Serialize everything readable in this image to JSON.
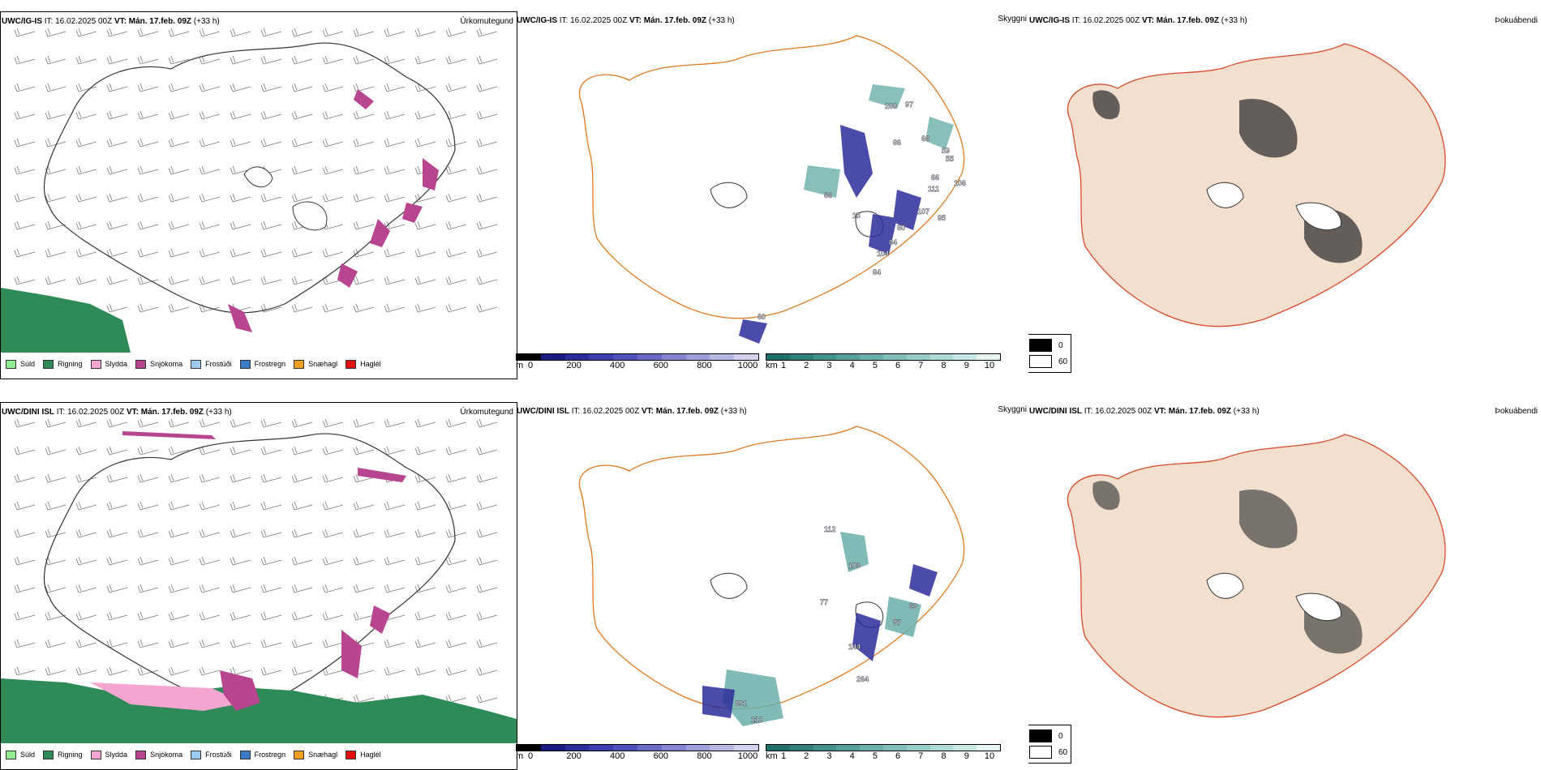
{
  "rows": [
    {
      "model": "UWC/IG-IS",
      "init": "IT: 16.02.2025 00Z",
      "valid": "VT: Mán. 17.feb. 09Z",
      "lead": "(+33 h)"
    },
    {
      "model": "UWC/DINI ISL",
      "init": "IT: 16.02.2025 00Z",
      "valid": "VT: Mán. 17.feb. 09Z",
      "lead": "(+33 h)"
    }
  ],
  "params": {
    "precip_type": "Úrkomutegund",
    "visibility": "Skyggni",
    "fog": "Þokuábendi"
  },
  "precip_legend": [
    {
      "label": "Súld",
      "color": "#90ee90"
    },
    {
      "label": "Rigning",
      "color": "#2e8b57"
    },
    {
      "label": "Slydda",
      "color": "#f4a6d0"
    },
    {
      "label": "Snjókoma",
      "color": "#b8458f"
    },
    {
      "label": "Frostúði",
      "color": "#9ec9f0"
    },
    {
      "label": "Frostregn",
      "color": "#3a7bc8"
    },
    {
      "label": "Snæhagl",
      "color": "#f0a020"
    },
    {
      "label": "Haglél",
      "color": "#e01010"
    }
  ],
  "ceiling_bar": {
    "unit": "m",
    "ticks": [
      "0",
      "200",
      "400",
      "600",
      "800",
      "1000"
    ],
    "colors": [
      "#000000",
      "#1a1a80",
      "#2b2b9a",
      "#3c3cae",
      "#5050bc",
      "#6a6ac6",
      "#8484d0",
      "#9e9eda",
      "#b8b8e4",
      "#d2d2ee"
    ]
  },
  "vis_bar": {
    "unit": "km",
    "ticks": [
      "1",
      "2",
      "3",
      "4",
      "5",
      "6",
      "7",
      "8",
      "9",
      "10"
    ],
    "colors": [
      "#1f6f6a",
      "#2f807b",
      "#40918c",
      "#55a09b",
      "#6aafaa",
      "#80beb9",
      "#98ccc8",
      "#b0dad6",
      "#c8e8e4",
      "#e6f5f3"
    ]
  },
  "fog_legend": [
    {
      "label": "0",
      "color": "#000000"
    },
    {
      "label": "60",
      "color": "#ffffff"
    }
  ],
  "ceiling_labels_top": [
    "200",
    "97",
    "66",
    "59",
    "86",
    "55",
    "66",
    "106",
    "111",
    "107",
    "80",
    "84",
    "104",
    "84",
    "15",
    "95",
    "66",
    "60"
  ],
  "ceiling_labels_bottom": [
    "891",
    "112",
    "264",
    "144",
    "87",
    "63",
    "103",
    "112",
    "77"
  ]
}
